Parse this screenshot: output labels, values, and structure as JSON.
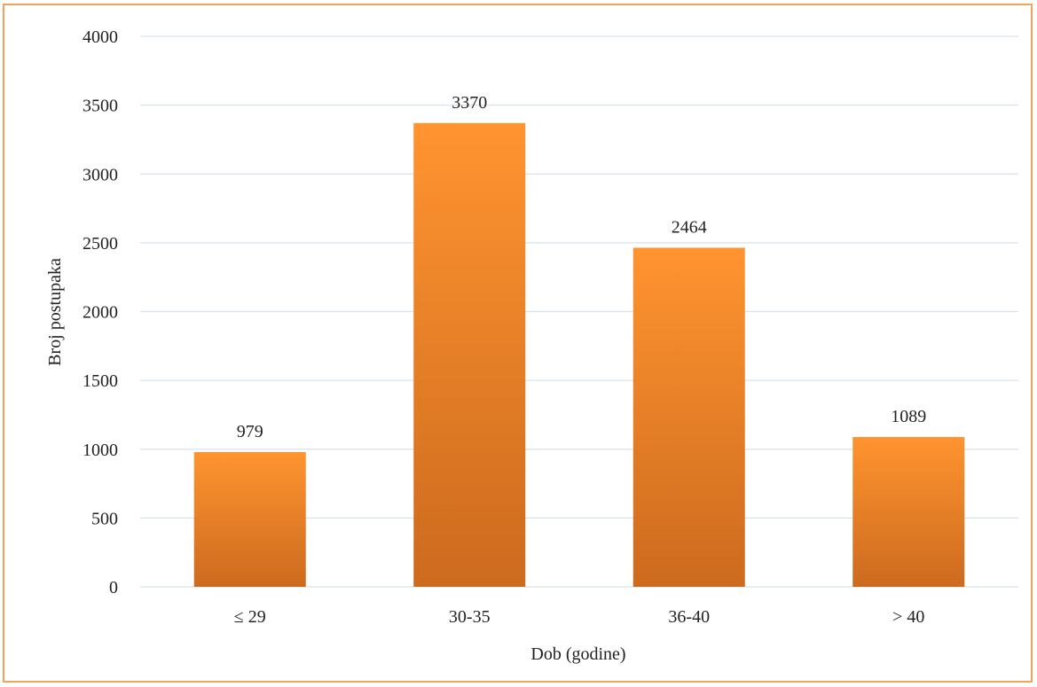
{
  "chart_data": {
    "type": "bar",
    "categories": [
      "≤ 29",
      "30-35",
      "36-40",
      "> 40"
    ],
    "values": [
      979,
      3370,
      2464,
      1089
    ],
    "data_labels": [
      "979",
      "3370",
      "2464",
      "1089"
    ],
    "title": "",
    "xlabel": "Dob (godine)",
    "ylabel": "Broj postupaka",
    "ylim": [
      0,
      4000
    ],
    "yticks": [
      0,
      500,
      1000,
      1500,
      2000,
      2500,
      3000,
      3500,
      4000
    ],
    "grid": true,
    "legend": "none",
    "colors": {
      "bar_top": "#ff9430",
      "bar_bottom": "#cc6a1e",
      "frame_border": "#f4a45a",
      "grid": "#d8e3ec"
    }
  }
}
